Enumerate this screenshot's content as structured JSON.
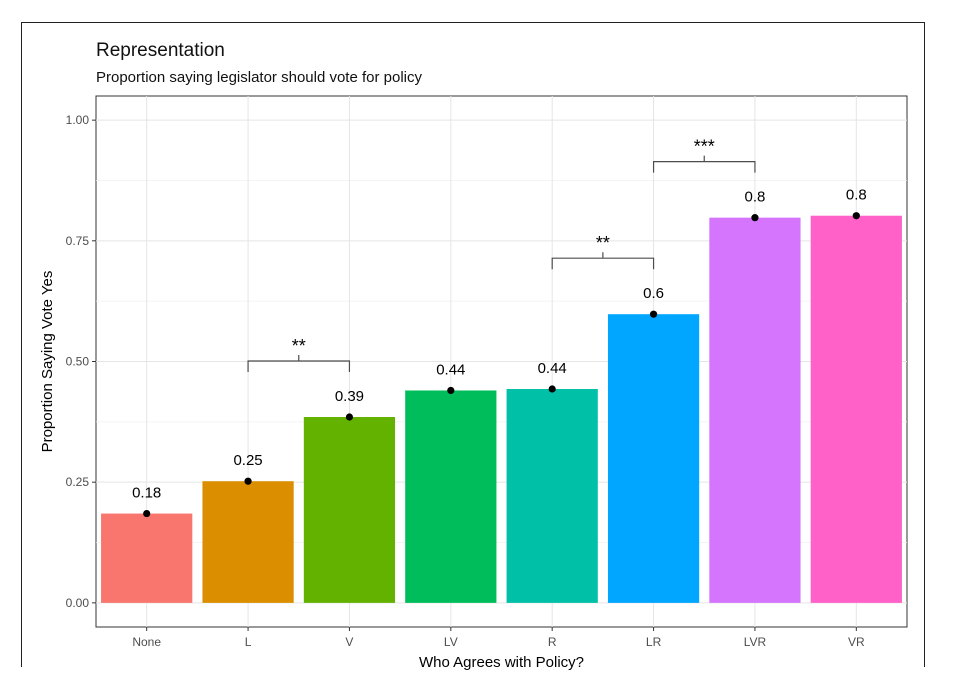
{
  "title": "Representation",
  "subtitle": "Proportion saying legislator should vote for policy",
  "chart_data": {
    "type": "bar",
    "title": "Representation",
    "subtitle": "Proportion saying legislator should vote for policy",
    "xlabel": "Who Agrees with Policy?",
    "ylabel": "Proportion Saying Vote Yes",
    "ylim": [
      -0.05,
      1.05
    ],
    "yticks": [
      0.0,
      0.25,
      0.5,
      0.75,
      1.0
    ],
    "ytick_labels": [
      "0.00",
      "0.25",
      "0.50",
      "0.75",
      "1.00"
    ],
    "grid": true,
    "legend": "none",
    "categories": [
      "None",
      "L",
      "V",
      "LV",
      "R",
      "LR",
      "LVR",
      "VR"
    ],
    "values": [
      0.185,
      0.252,
      0.385,
      0.44,
      0.443,
      0.598,
      0.798,
      0.802
    ],
    "labels": [
      "0.18",
      "0.25",
      "0.39",
      "0.44",
      "0.44",
      "0.6",
      "0.8",
      "0.8"
    ],
    "colors": [
      "#F8766D",
      "#DB8E00",
      "#64B200",
      "#00BD5C",
      "#00C1A7",
      "#00A6FF",
      "#D575FE",
      "#FF61C9"
    ],
    "significance": [
      {
        "from": "L",
        "to": "V",
        "label": "**"
      },
      {
        "from": "R",
        "to": "LR",
        "label": "**"
      },
      {
        "from": "LR",
        "to": "LVR",
        "label": "***"
      }
    ]
  }
}
